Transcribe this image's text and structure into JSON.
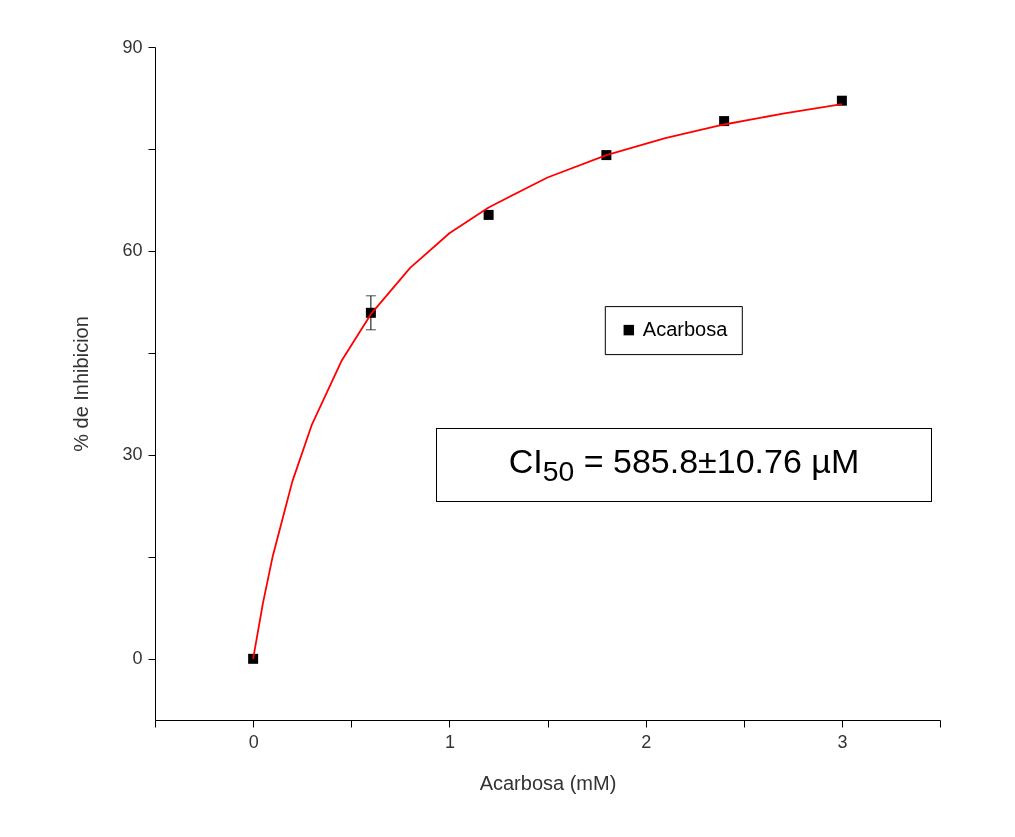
{
  "chart_data": {
    "type": "scatter",
    "xlabel": "Acarbosa (mM)",
    "ylabel": "% de Inhibicion",
    "xlim": [
      -0.5,
      3.5
    ],
    "ylim": [
      -9,
      90
    ],
    "xticks": [
      {
        "value": -0.5,
        "label": null
      },
      0,
      {
        "value": 0.5,
        "label": null
      },
      1,
      {
        "value": 1.5,
        "label": null
      },
      2,
      {
        "value": 2.5,
        "label": null
      },
      3,
      {
        "value": 3.5,
        "label": null
      }
    ],
    "yticks": [
      0,
      {
        "value": 15,
        "label": null
      },
      30,
      {
        "value": 45,
        "label": null
      },
      60,
      {
        "value": 75,
        "label": null
      },
      90
    ],
    "grid": false,
    "legend": "right",
    "marker": "square",
    "annotations": [
      "CI$_{50}$ = 585.8±10.76 µM"
    ],
    "series": [
      {
        "name": "Acarbosa",
        "color": "#000000",
        "x": [
          0,
          0.6,
          1.2,
          1.8,
          2.4,
          3.0
        ],
        "values": [
          0,
          50.9,
          65.3,
          74.1,
          79.1,
          82.1
        ],
        "errors": [
          null,
          2.5,
          null,
          null,
          null,
          null
        ]
      },
      {
        "type": "line",
        "marker": "none",
        "color": "#ff0000",
        "x": [
          0,
          0.05,
          0.1,
          0.2,
          0.3,
          0.45,
          0.6,
          0.8,
          1.0,
          1.2,
          1.5,
          1.8,
          2.1,
          2.4,
          2.7,
          3.0
        ],
        "values": [
          0,
          8.2,
          15.1,
          26.1,
          34.5,
          43.8,
          50.7,
          57.5,
          62.6,
          66.4,
          70.8,
          74.1,
          76.6,
          78.6,
          80.2,
          81.6
        ]
      }
    ]
  }
}
